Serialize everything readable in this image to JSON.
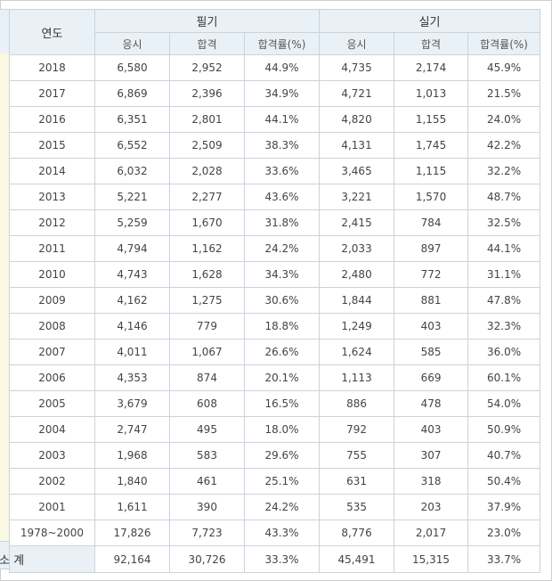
{
  "header": {
    "year": "연도",
    "written": "필기",
    "practical": "실기",
    "cols": [
      "응시",
      "합격",
      "합격률(%)",
      "응시",
      "합격",
      "합격률(%)"
    ]
  },
  "rows": [
    {
      "year": "2018",
      "w_apply": "6,580",
      "w_pass": "2,952",
      "w_rate": "44.9%",
      "p_apply": "4,735",
      "p_pass": "2,174",
      "p_rate": "45.9%"
    },
    {
      "year": "2017",
      "w_apply": "6,869",
      "w_pass": "2,396",
      "w_rate": "34.9%",
      "p_apply": "4,721",
      "p_pass": "1,013",
      "p_rate": "21.5%"
    },
    {
      "year": "2016",
      "w_apply": "6,351",
      "w_pass": "2,801",
      "w_rate": "44.1%",
      "p_apply": "4,820",
      "p_pass": "1,155",
      "p_rate": "24.0%"
    },
    {
      "year": "2015",
      "w_apply": "6,552",
      "w_pass": "2,509",
      "w_rate": "38.3%",
      "p_apply": "4,131",
      "p_pass": "1,745",
      "p_rate": "42.2%"
    },
    {
      "year": "2014",
      "w_apply": "6,032",
      "w_pass": "2,028",
      "w_rate": "33.6%",
      "p_apply": "3,465",
      "p_pass": "1,115",
      "p_rate": "32.2%"
    },
    {
      "year": "2013",
      "w_apply": "5,221",
      "w_pass": "2,277",
      "w_rate": "43.6%",
      "p_apply": "3,221",
      "p_pass": "1,570",
      "p_rate": "48.7%"
    },
    {
      "year": "2012",
      "w_apply": "5,259",
      "w_pass": "1,670",
      "w_rate": "31.8%",
      "p_apply": "2,415",
      "p_pass": "784",
      "p_rate": "32.5%"
    },
    {
      "year": "2011",
      "w_apply": "4,794",
      "w_pass": "1,162",
      "w_rate": "24.2%",
      "p_apply": "2,033",
      "p_pass": "897",
      "p_rate": "44.1%"
    },
    {
      "year": "2010",
      "w_apply": "4,743",
      "w_pass": "1,628",
      "w_rate": "34.3%",
      "p_apply": "2,480",
      "p_pass": "772",
      "p_rate": "31.1%"
    },
    {
      "year": "2009",
      "w_apply": "4,162",
      "w_pass": "1,275",
      "w_rate": "30.6%",
      "p_apply": "1,844",
      "p_pass": "881",
      "p_rate": "47.8%"
    },
    {
      "year": "2008",
      "w_apply": "4,146",
      "w_pass": "779",
      "w_rate": "18.8%",
      "p_apply": "1,249",
      "p_pass": "403",
      "p_rate": "32.3%"
    },
    {
      "year": "2007",
      "w_apply": "4,011",
      "w_pass": "1,067",
      "w_rate": "26.6%",
      "p_apply": "1,624",
      "p_pass": "585",
      "p_rate": "36.0%"
    },
    {
      "year": "2006",
      "w_apply": "4,353",
      "w_pass": "874",
      "w_rate": "20.1%",
      "p_apply": "1,113",
      "p_pass": "669",
      "p_rate": "60.1%"
    },
    {
      "year": "2005",
      "w_apply": "3,679",
      "w_pass": "608",
      "w_rate": "16.5%",
      "p_apply": "886",
      "p_pass": "478",
      "p_rate": "54.0%"
    },
    {
      "year": "2004",
      "w_apply": "2,747",
      "w_pass": "495",
      "w_rate": "18.0%",
      "p_apply": "792",
      "p_pass": "403",
      "p_rate": "50.9%"
    },
    {
      "year": "2003",
      "w_apply": "1,968",
      "w_pass": "583",
      "w_rate": "29.6%",
      "p_apply": "755",
      "p_pass": "307",
      "p_rate": "40.7%"
    },
    {
      "year": "2002",
      "w_apply": "1,840",
      "w_pass": "461",
      "w_rate": "25.1%",
      "p_apply": "631",
      "p_pass": "318",
      "p_rate": "50.4%"
    },
    {
      "year": "2001",
      "w_apply": "1,611",
      "w_pass": "390",
      "w_rate": "24.2%",
      "p_apply": "535",
      "p_pass": "203",
      "p_rate": "37.9%"
    },
    {
      "year": "1978~2000",
      "w_apply": "17,826",
      "w_pass": "7,723",
      "w_rate": "43.3%",
      "p_apply": "8,776",
      "p_pass": "2,017",
      "p_rate": "23.0%"
    }
  ],
  "total": {
    "label": "소 계",
    "w_apply": "92,164",
    "w_pass": "30,726",
    "w_rate": "33.3%",
    "p_apply": "45,491",
    "p_pass": "15,315",
    "p_rate": "33.7%"
  },
  "colors": {
    "header_bg": "#e9f1f7",
    "border": "#c9d3dc",
    "left_strip": "#fbf8e2"
  }
}
